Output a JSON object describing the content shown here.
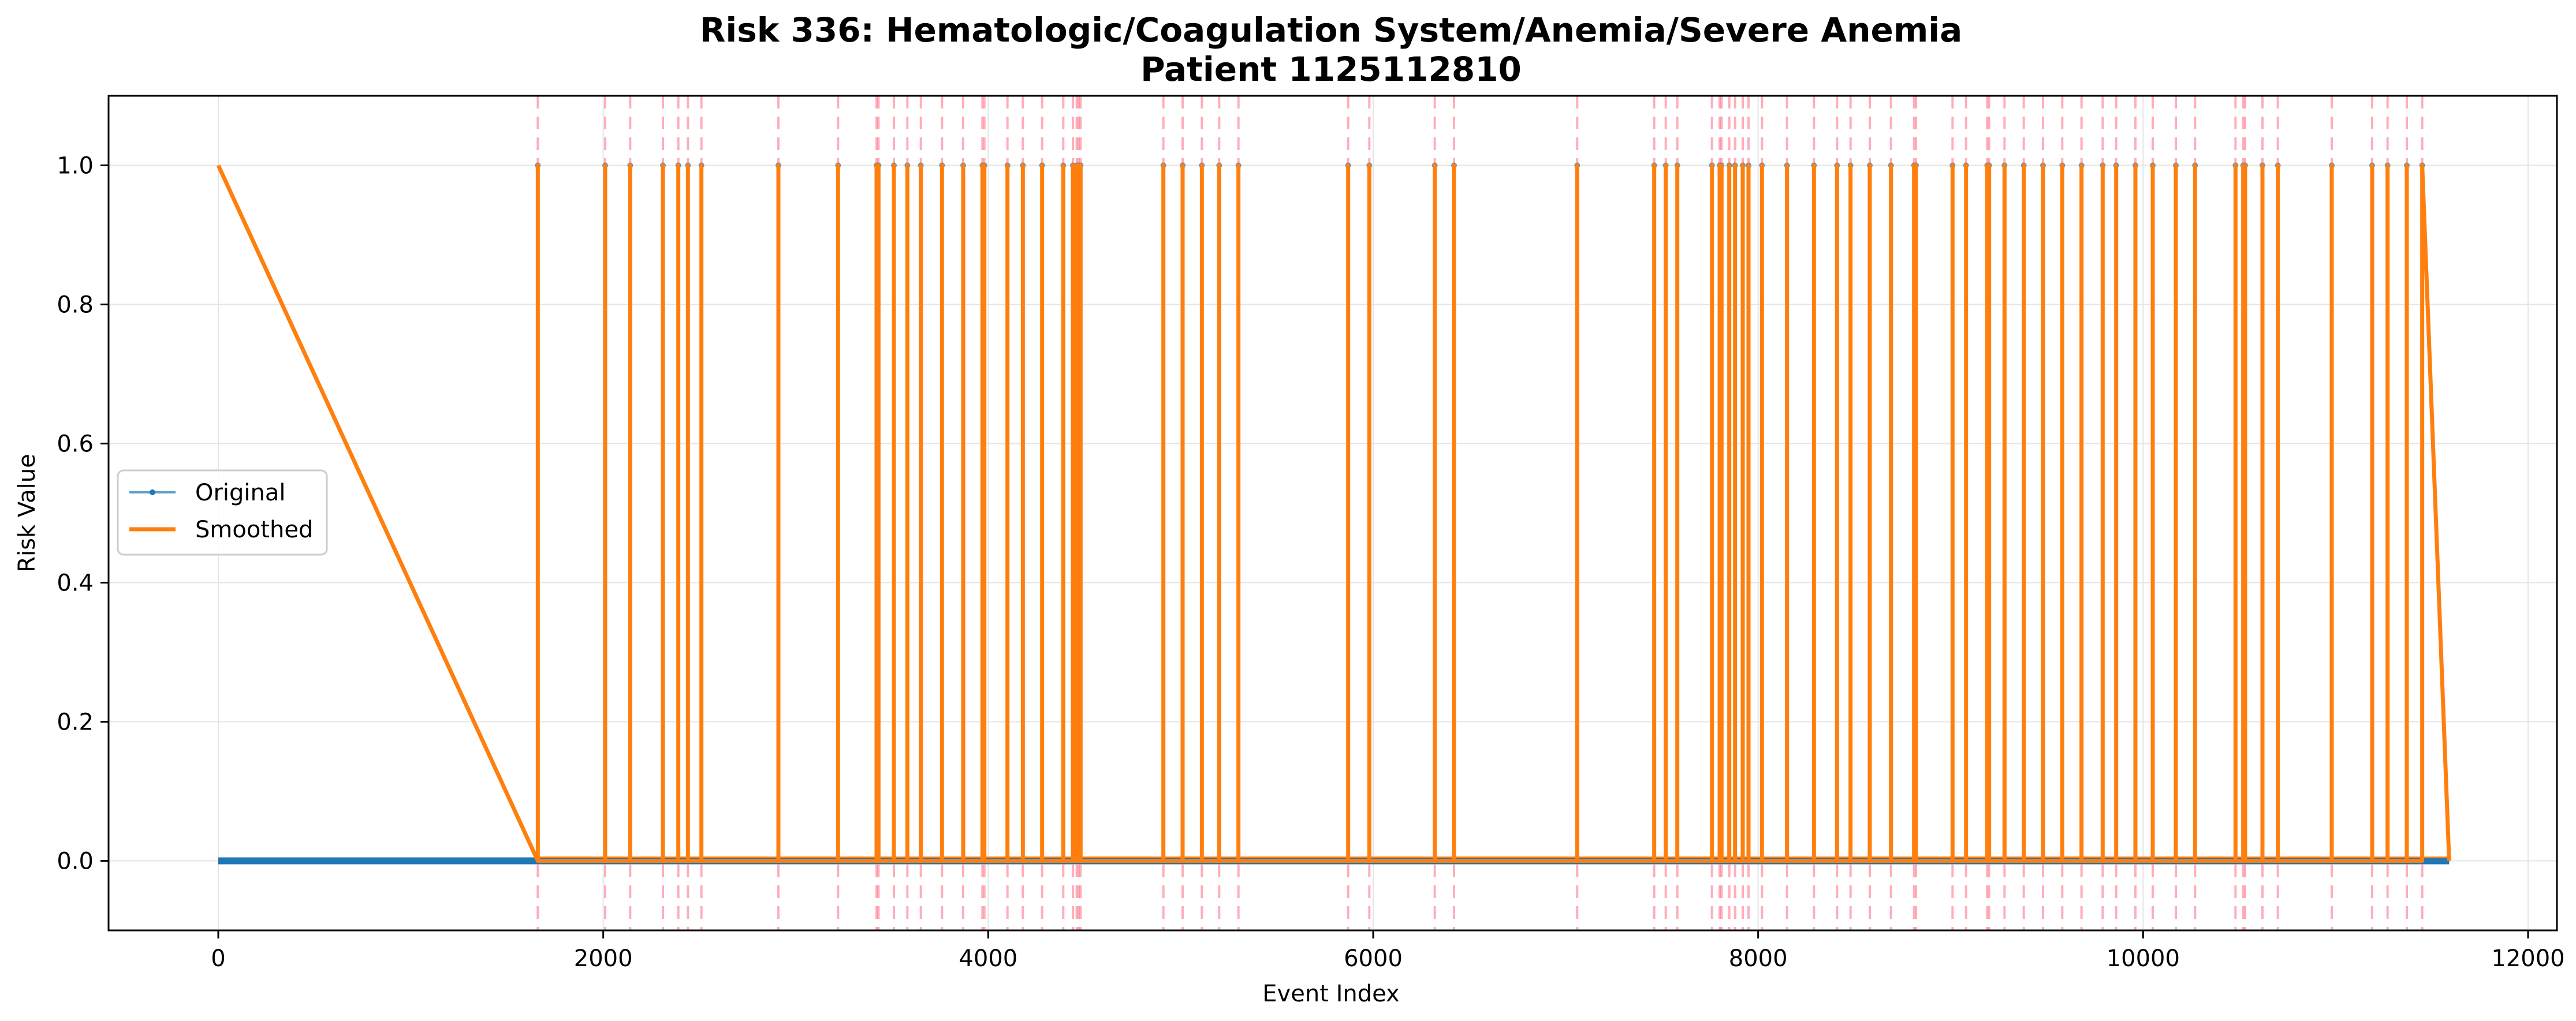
{
  "chart_data": {
    "type": "line",
    "title": "Risk 336: Hematologic/Coagulation System/Anemia/Severe Anemia",
    "subtitle": "Patient 1125112810",
    "xlabel": "Event Index",
    "ylabel": "Risk Value",
    "xlim": [
      -570,
      12150
    ],
    "ylim": [
      -0.1,
      1.1
    ],
    "x_ticks": [
      0,
      2000,
      4000,
      6000,
      8000,
      10000,
      12000
    ],
    "x_tick_labels": [
      "0",
      "2000",
      "4000",
      "6000",
      "8000",
      "10000",
      "12000"
    ],
    "y_ticks": [
      0.0,
      0.2,
      0.4,
      0.6,
      0.8,
      1.0
    ],
    "y_tick_labels": [
      "0.0",
      "0.2",
      "0.4",
      "0.6",
      "0.8",
      "1.0"
    ],
    "grid": true,
    "legend_position": "center-left",
    "event_indices": [
      1660,
      2010,
      2140,
      2310,
      2390,
      2440,
      2510,
      2910,
      3220,
      3420,
      3430,
      3510,
      3580,
      3650,
      3760,
      3870,
      3970,
      3980,
      4100,
      4180,
      4280,
      4390,
      4440,
      4460,
      4470,
      4480,
      4910,
      5010,
      5110,
      5200,
      5300,
      5870,
      5980,
      6320,
      6420,
      7060,
      7460,
      7520,
      7580,
      7760,
      7800,
      7810,
      7850,
      7880,
      7920,
      7950,
      8020,
      8150,
      8290,
      8410,
      8480,
      8580,
      8690,
      8810,
      8820,
      9010,
      9080,
      9190,
      9200,
      9280,
      9380,
      9480,
      9580,
      9680,
      9790,
      9860,
      9960,
      10050,
      10170,
      10270,
      10480,
      10520,
      10530,
      10620,
      10700,
      10980,
      11190,
      11270,
      11370,
      11450
    ],
    "series": [
      {
        "name": "Original",
        "color": "#1f77b4",
        "baseline": 0.0,
        "peak": 1.0,
        "x_start": 0,
        "x_end": 11590
      },
      {
        "name": "Smoothed",
        "color": "#ff7f0e",
        "x_start": 0,
        "y_start": 1.0,
        "baseline": 0.0,
        "peak": 1.0,
        "x_end": 11590,
        "final_point": [
          11590,
          0.0
        ]
      }
    ],
    "vline_color": "#ff6b81"
  }
}
